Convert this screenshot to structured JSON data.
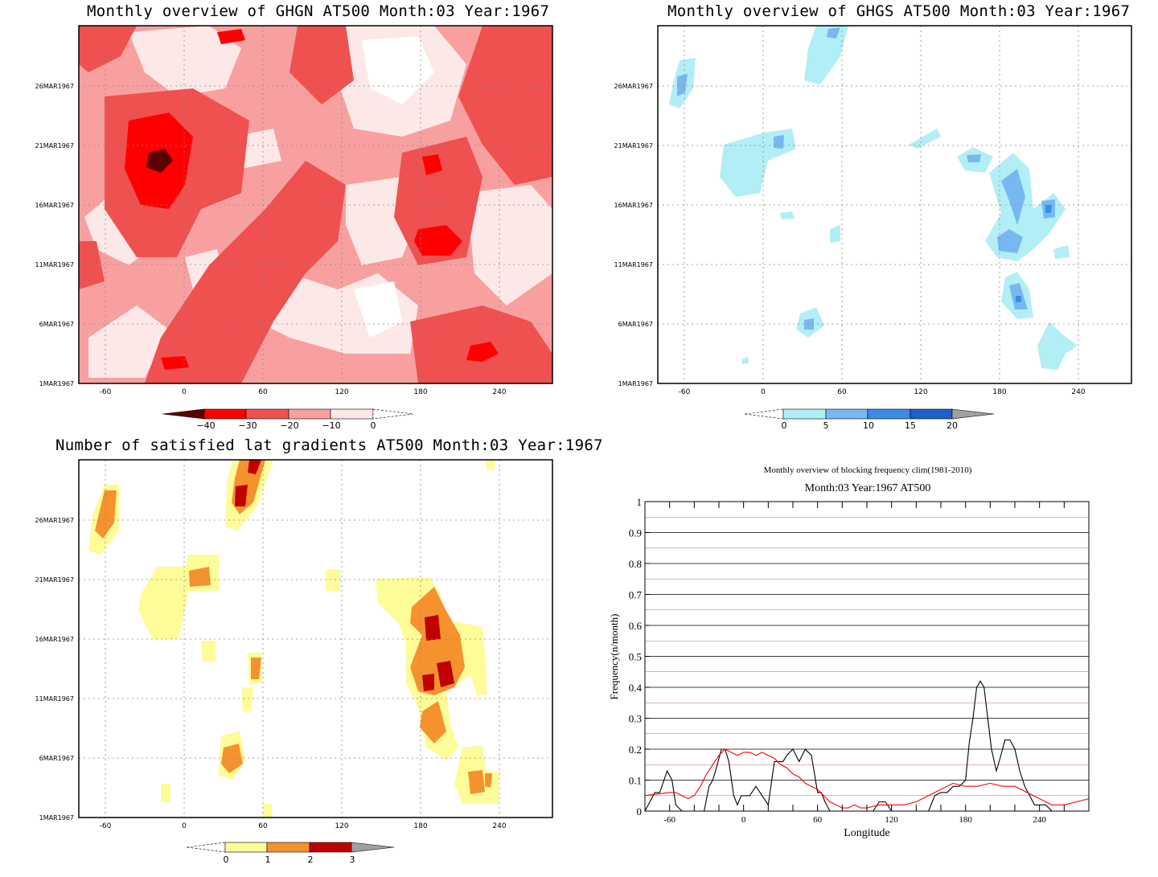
{
  "panels": {
    "ghgn": {
      "title": "Monthly overview of GHGN AT500 Month:03 Year:1967",
      "colorbar_ticks": [
        "−40",
        "−30",
        "−20",
        "−10",
        "0"
      ],
      "colors": [
        "#5c0000",
        "#ff0000",
        "#ef5050",
        "#f8a0a0",
        "#fde8e8",
        "#ffffff"
      ]
    },
    "ghgs": {
      "title": "Monthly overview of GHGS AT500 Month:03 Year:1967",
      "colorbar_ticks": [
        "0",
        "5",
        "10",
        "15",
        "20"
      ],
      "colors": [
        "#ffffff",
        "#b2eef5",
        "#78b8f0",
        "#3a8ce6",
        "#1f5fcc",
        "#a0a0a0"
      ]
    },
    "gradients": {
      "title": "Number of satisfied lat gradients AT500 Month:03 Year:1967",
      "colorbar_ticks": [
        "0",
        "1",
        "2",
        "3"
      ],
      "colors": [
        "#ffffff",
        "#fdfc98",
        "#f5922e",
        "#c00000",
        "#a0a0a0"
      ]
    },
    "blocking": {
      "title": "Monthly overview of blocking frequency clim(1981-2010)",
      "subtitle": "Month:03 Year:1967  AT500",
      "xlabel": "Longitude",
      "ylabel": "Frequency(n/month)"
    }
  },
  "map_axes": {
    "x_ticks": [
      "-60",
      "0",
      "60",
      "120",
      "180",
      "240"
    ],
    "y_ticks": [
      "1MAR1967",
      "6MAR1967",
      "11MAR1967",
      "16MAR1967",
      "21MAR1967",
      "26MAR1967"
    ]
  },
  "chart_data": [
    {
      "type": "heatmap",
      "title": "Monthly overview of GHGN AT500 Month:03 Year:1967",
      "x_range": [
        -80,
        280
      ],
      "y_range": [
        "1MAR1967",
        "31MAR1967"
      ],
      "levels": [
        -40,
        -30,
        -20,
        -10,
        0
      ]
    },
    {
      "type": "heatmap",
      "title": "Monthly overview of GHGS AT500 Month:03 Year:1967",
      "x_range": [
        -80,
        280
      ],
      "y_range": [
        "1MAR1967",
        "31MAR1967"
      ],
      "levels": [
        0,
        5,
        10,
        15,
        20
      ]
    },
    {
      "type": "heatmap",
      "title": "Number of satisfied lat gradients AT500 Month:03 Year:1967",
      "x_range": [
        -80,
        280
      ],
      "y_range": [
        "1MAR1967",
        "31MAR1967"
      ],
      "levels": [
        0,
        1,
        2,
        3
      ]
    },
    {
      "type": "line",
      "title": "Monthly overview of blocking frequency clim(1981-2010)",
      "subtitle": "Month:03 Year:1967  AT500",
      "xlabel": "Longitude",
      "ylabel": "Frequency(n/month)",
      "xlim": [
        -80,
        280
      ],
      "ylim": [
        0,
        1
      ],
      "x_ticks": [
        -60,
        0,
        60,
        120,
        180,
        240
      ],
      "y_ticks": [
        0,
        0.1,
        0.2,
        0.3,
        0.4,
        0.5,
        0.6,
        0.7,
        0.8,
        0.9,
        1
      ],
      "grid": true,
      "series": [
        {
          "color": "#000000",
          "x": [
            -80,
            -72,
            -68,
            -62,
            -58,
            -55,
            -50,
            -45,
            -40,
            -35,
            -32,
            -28,
            -25,
            -22,
            -18,
            -15,
            -12,
            -8,
            -5,
            -2,
            0,
            5,
            10,
            15,
            20,
            25,
            28,
            32,
            35,
            40,
            45,
            50,
            55,
            60,
            63,
            66,
            70,
            75,
            80,
            90,
            100,
            105,
            110,
            115,
            120,
            130,
            140,
            150,
            155,
            160,
            165,
            170,
            175,
            180,
            183,
            186,
            189,
            192,
            195,
            198,
            201,
            205,
            208,
            212,
            216,
            220,
            224,
            228,
            232,
            236,
            240,
            245,
            250,
            260,
            270,
            280
          ],
          "y": [
            0,
            0.06,
            0.06,
            0.13,
            0.1,
            0.02,
            0,
            0,
            0,
            0,
            0,
            0.08,
            0.1,
            0.14,
            0.2,
            0.2,
            0.16,
            0.05,
            0.02,
            0.05,
            0.05,
            0.05,
            0.08,
            0.05,
            0.02,
            0.16,
            0.16,
            0.16,
            0.18,
            0.2,
            0.16,
            0.2,
            0.18,
            0.06,
            0.06,
            0.03,
            0,
            0,
            0,
            0,
            0,
            0,
            0.03,
            0.03,
            0,
            0,
            0,
            0,
            0.05,
            0.06,
            0.06,
            0.08,
            0.08,
            0.1,
            0.22,
            0.3,
            0.4,
            0.42,
            0.4,
            0.3,
            0.2,
            0.13,
            0.17,
            0.23,
            0.23,
            0.2,
            0.13,
            0.08,
            0.05,
            0.02,
            0.02,
            0.02,
            0,
            0,
            0,
            0
          ]
        },
        {
          "color": "#ff0000",
          "x": [
            -80,
            -70,
            -60,
            -55,
            -50,
            -45,
            -40,
            -35,
            -30,
            -25,
            -20,
            -15,
            -10,
            -5,
            0,
            5,
            10,
            15,
            20,
            25,
            30,
            35,
            40,
            45,
            50,
            55,
            60,
            65,
            70,
            75,
            80,
            85,
            90,
            95,
            100,
            110,
            120,
            130,
            140,
            150,
            160,
            170,
            180,
            190,
            200,
            210,
            220,
            230,
            240,
            250,
            260,
            270,
            280
          ],
          "y": [
            0.05,
            0.055,
            0.06,
            0.06,
            0.05,
            0.04,
            0.05,
            0.08,
            0.12,
            0.15,
            0.18,
            0.2,
            0.19,
            0.18,
            0.19,
            0.19,
            0.18,
            0.19,
            0.18,
            0.17,
            0.15,
            0.14,
            0.12,
            0.11,
            0.09,
            0.08,
            0.07,
            0.05,
            0.03,
            0.02,
            0.01,
            0.01,
            0.02,
            0.01,
            0.01,
            0.02,
            0.02,
            0.02,
            0.03,
            0.05,
            0.07,
            0.09,
            0.08,
            0.08,
            0.09,
            0.08,
            0.08,
            0.06,
            0.04,
            0.02,
            0.02,
            0.03,
            0.04
          ]
        }
      ]
    }
  ]
}
